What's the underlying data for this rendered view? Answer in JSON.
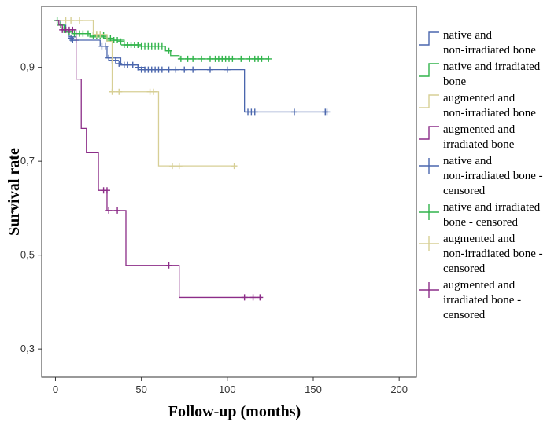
{
  "chart_data": {
    "type": "line",
    "subtype": "kaplan-meier",
    "title": "",
    "xlabel": "Follow-up (months)",
    "ylabel": "Survival rate",
    "xlim": [
      -8,
      210
    ],
    "ylim": [
      0.24,
      1.03
    ],
    "xticks": [
      0,
      50,
      100,
      150,
      200
    ],
    "xtick_labels": [
      "0",
      "50",
      "100",
      "150",
      "200"
    ],
    "yticks": [
      0.3,
      0.5,
      0.7,
      0.9
    ],
    "ytick_labels": [
      "0,3",
      "0,5",
      "0,7",
      "0,9"
    ],
    "grid": false,
    "legend_position": "right",
    "series": [
      {
        "name": "native and non-irradiated bone",
        "censored_name": "native and non-irradiated bone - censored",
        "color": "#4a66ad",
        "steps": [
          [
            0,
            1.0
          ],
          [
            3,
            0.99
          ],
          [
            6,
            0.975
          ],
          [
            8,
            0.965
          ],
          [
            12,
            0.958
          ],
          [
            26,
            0.945
          ],
          [
            30,
            0.92
          ],
          [
            38,
            0.905
          ],
          [
            48,
            0.9
          ],
          [
            52,
            0.895
          ],
          [
            110,
            0.805
          ],
          [
            158,
            0.805
          ]
        ],
        "censored": [
          [
            9,
            0.962
          ],
          [
            10,
            0.958
          ],
          [
            12,
            0.958
          ],
          [
            27,
            0.945
          ],
          [
            29,
            0.945
          ],
          [
            31,
            0.92
          ],
          [
            33,
            0.915
          ],
          [
            35,
            0.915
          ],
          [
            37,
            0.908
          ],
          [
            40,
            0.905
          ],
          [
            42,
            0.905
          ],
          [
            45,
            0.905
          ],
          [
            48,
            0.9
          ],
          [
            50,
            0.895
          ],
          [
            52,
            0.895
          ],
          [
            54,
            0.895
          ],
          [
            56,
            0.895
          ],
          [
            58,
            0.895
          ],
          [
            60,
            0.895
          ],
          [
            62,
            0.895
          ],
          [
            66,
            0.895
          ],
          [
            70,
            0.895
          ],
          [
            75,
            0.895
          ],
          [
            80,
            0.895
          ],
          [
            90,
            0.895
          ],
          [
            100,
            0.895
          ],
          [
            112,
            0.805
          ],
          [
            114,
            0.805
          ],
          [
            116,
            0.805
          ],
          [
            139,
            0.805
          ],
          [
            157,
            0.805
          ],
          [
            158,
            0.805
          ]
        ]
      },
      {
        "name": "native and irradiated bone",
        "censored_name": "native and irradiated bone - censored",
        "color": "#31b44b",
        "steps": [
          [
            0,
            1.0
          ],
          [
            2,
            0.99
          ],
          [
            5,
            0.98
          ],
          [
            10,
            0.972
          ],
          [
            20,
            0.965
          ],
          [
            30,
            0.958
          ],
          [
            40,
            0.948
          ],
          [
            50,
            0.945
          ],
          [
            64,
            0.935
          ],
          [
            67,
            0.925
          ],
          [
            72,
            0.918
          ],
          [
            124,
            0.918
          ]
        ],
        "censored": [
          [
            1,
            1.0
          ],
          [
            3,
            0.99
          ],
          [
            5,
            0.98
          ],
          [
            8,
            0.975
          ],
          [
            11,
            0.972
          ],
          [
            14,
            0.972
          ],
          [
            16,
            0.972
          ],
          [
            19,
            0.972
          ],
          [
            22,
            0.968
          ],
          [
            24,
            0.968
          ],
          [
            26,
            0.968
          ],
          [
            28,
            0.968
          ],
          [
            30,
            0.962
          ],
          [
            32,
            0.962
          ],
          [
            34,
            0.958
          ],
          [
            36,
            0.958
          ],
          [
            38,
            0.955
          ],
          [
            40,
            0.948
          ],
          [
            42,
            0.948
          ],
          [
            44,
            0.948
          ],
          [
            46,
            0.948
          ],
          [
            48,
            0.948
          ],
          [
            50,
            0.945
          ],
          [
            52,
            0.945
          ],
          [
            54,
            0.945
          ],
          [
            56,
            0.945
          ],
          [
            58,
            0.945
          ],
          [
            60,
            0.945
          ],
          [
            62,
            0.945
          ],
          [
            66,
            0.935
          ],
          [
            73,
            0.918
          ],
          [
            77,
            0.918
          ],
          [
            80,
            0.918
          ],
          [
            85,
            0.918
          ],
          [
            90,
            0.918
          ],
          [
            93,
            0.918
          ],
          [
            95,
            0.918
          ],
          [
            97,
            0.918
          ],
          [
            99,
            0.918
          ],
          [
            101,
            0.918
          ],
          [
            103,
            0.918
          ],
          [
            108,
            0.918
          ],
          [
            113,
            0.918
          ],
          [
            116,
            0.918
          ],
          [
            118,
            0.918
          ],
          [
            120,
            0.918
          ],
          [
            124,
            0.918
          ]
        ]
      },
      {
        "name": "augmented and non-irradiated bone",
        "censored_name": "augmented and non-irradiated bone - censored",
        "color": "#d7cf95",
        "steps": [
          [
            0,
            1.0
          ],
          [
            22,
            0.97
          ],
          [
            30,
            0.955
          ],
          [
            33,
            0.848
          ],
          [
            60,
            0.69
          ],
          [
            104,
            0.69
          ]
        ],
        "censored": [
          [
            6,
            1.0
          ],
          [
            9,
            1.0
          ],
          [
            14,
            1.0
          ],
          [
            24,
            0.97
          ],
          [
            26,
            0.97
          ],
          [
            33,
            0.848
          ],
          [
            37,
            0.848
          ],
          [
            55,
            0.848
          ],
          [
            57,
            0.848
          ],
          [
            68,
            0.69
          ],
          [
            72,
            0.69
          ],
          [
            104,
            0.69
          ]
        ]
      },
      {
        "name": "augmented and irradiated bone",
        "censored_name": "augmented and irradiated bone - censored",
        "color": "#8c2d88",
        "steps": [
          [
            0,
            1.0
          ],
          [
            2,
            0.99
          ],
          [
            4,
            0.98
          ],
          [
            10,
            0.98
          ],
          [
            12,
            0.875
          ],
          [
            15,
            0.77
          ],
          [
            18,
            0.718
          ],
          [
            25,
            0.638
          ],
          [
            30,
            0.595
          ],
          [
            41,
            0.478
          ],
          [
            72,
            0.41
          ],
          [
            120,
            0.41
          ]
        ],
        "censored": [
          [
            4,
            0.98
          ],
          [
            6,
            0.98
          ],
          [
            8,
            0.98
          ],
          [
            10,
            0.98
          ],
          [
            28,
            0.638
          ],
          [
            30,
            0.638
          ],
          [
            31,
            0.595
          ],
          [
            36,
            0.595
          ],
          [
            66,
            0.478
          ],
          [
            110,
            0.41
          ],
          [
            115,
            0.41
          ],
          [
            119,
            0.41
          ]
        ]
      }
    ]
  }
}
